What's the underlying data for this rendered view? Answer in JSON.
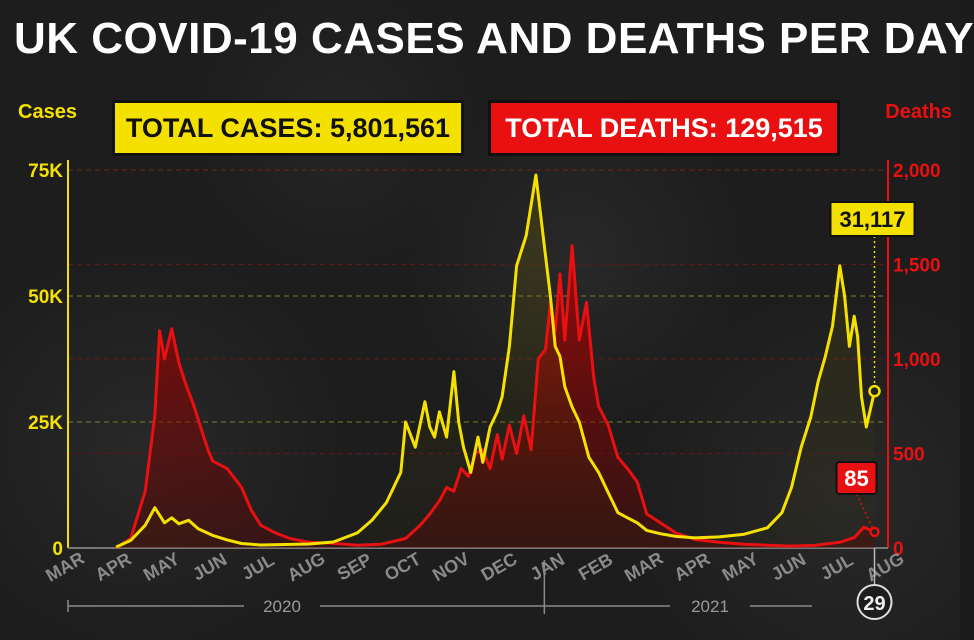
{
  "header": {
    "title": "UK COVID-19 CASES AND DEATHS PER DAY",
    "total_cases": "TOTAL CASES: 5,801,561",
    "total_deaths": "TOTAL DEATHS: 129,515"
  },
  "colors": {
    "cases": "#f5e100",
    "deaths": "#e81010",
    "grid": "#6e6a2a",
    "month_label": "#8a8a8a"
  },
  "chart_data": {
    "type": "line",
    "x_axis": {
      "months": [
        "MAR",
        "APR",
        "MAY",
        "JUN",
        "JUL",
        "AUG",
        "SEP",
        "OCT",
        "NOV",
        "DEC",
        "JAN",
        "FEB",
        "MAR",
        "APR",
        "MAY",
        "JUN",
        "JUL",
        "AUG"
      ],
      "years": [
        "2020",
        "2021"
      ],
      "end_day_label": "29"
    },
    "left_axis": {
      "label": "Cases",
      "ticks": [
        "0",
        "25K",
        "50K",
        "75K"
      ],
      "ylim": [
        0,
        75000
      ]
    },
    "right_axis": {
      "label": "Deaths",
      "ticks": [
        "0",
        "500",
        "1,000",
        "1,500",
        "2,000"
      ],
      "ylim": [
        0,
        2000
      ]
    },
    "grid": true,
    "series": [
      {
        "name": "Cases",
        "axis": "left",
        "x": [
          1.0,
          1.3,
          1.6,
          1.8,
          2.0,
          2.15,
          2.3,
          2.5,
          2.7,
          3.0,
          3.3,
          3.6,
          4.0,
          4.5,
          5.0,
          5.5,
          6.0,
          6.3,
          6.6,
          6.9,
          7.0,
          7.2,
          7.4,
          7.5,
          7.6,
          7.7,
          7.85,
          8.0,
          8.1,
          8.2,
          8.35,
          8.5,
          8.6,
          8.75,
          8.9,
          9.0,
          9.15,
          9.3,
          9.5,
          9.7,
          9.9,
          10.0,
          10.05,
          10.1,
          10.2,
          10.3,
          10.45,
          10.6,
          10.8,
          11.0,
          11.2,
          11.4,
          11.6,
          11.8,
          12.0,
          12.3,
          12.6,
          13.0,
          13.5,
          14.0,
          14.5,
          14.8,
          15.0,
          15.2,
          15.4,
          15.55,
          15.7,
          15.85,
          16.0,
          16.1,
          16.2,
          16.3,
          16.37,
          16.45,
          16.55,
          16.72
        ],
        "values": [
          200,
          1500,
          4500,
          8000,
          5000,
          6000,
          4800,
          5500,
          3800,
          2500,
          1600,
          900,
          600,
          700,
          800,
          1200,
          3000,
          5500,
          9000,
          15000,
          25000,
          20000,
          29000,
          24000,
          22000,
          27000,
          22000,
          35000,
          25000,
          20000,
          15000,
          22000,
          17000,
          24000,
          27000,
          30000,
          40000,
          56000,
          62000,
          74000,
          58000,
          50000,
          45000,
          40000,
          38000,
          32000,
          28000,
          25000,
          18000,
          15000,
          11000,
          7000,
          6000,
          5000,
          3500,
          2800,
          2300,
          2000,
          2200,
          2700,
          4000,
          7000,
          12000,
          20000,
          26000,
          33000,
          38000,
          44000,
          56000,
          50000,
          40000,
          46000,
          42000,
          30000,
          24000,
          31117
        ]
      },
      {
        "name": "Deaths",
        "axis": "right",
        "x": [
          1.0,
          1.3,
          1.6,
          1.8,
          1.9,
          2.0,
          2.15,
          2.3,
          2.45,
          2.6,
          2.75,
          2.9,
          3.0,
          3.3,
          3.6,
          3.8,
          4.0,
          4.3,
          4.6,
          5.0,
          5.5,
          6.0,
          6.5,
          7.0,
          7.3,
          7.5,
          7.7,
          7.85,
          8.0,
          8.15,
          8.3,
          8.45,
          8.6,
          8.75,
          8.9,
          9.0,
          9.15,
          9.3,
          9.45,
          9.6,
          9.75,
          9.9,
          10.0,
          10.1,
          10.2,
          10.3,
          10.45,
          10.6,
          10.75,
          10.9,
          11.0,
          11.2,
          11.4,
          11.6,
          11.8,
          12.0,
          12.3,
          12.6,
          13.0,
          13.5,
          14.0,
          14.5,
          15.0,
          15.5,
          16.0,
          16.3,
          16.5,
          16.72
        ],
        "values": [
          0,
          50,
          300,
          700,
          1150,
          1000,
          1160,
          980,
          860,
          760,
          640,
          520,
          460,
          420,
          320,
          200,
          120,
          80,
          50,
          30,
          25,
          15,
          20,
          50,
          120,
          180,
          250,
          320,
          300,
          420,
          380,
          500,
          520,
          420,
          600,
          470,
          650,
          500,
          700,
          520,
          1000,
          1050,
          1300,
          1150,
          1450,
          1100,
          1600,
          1100,
          1300,
          900,
          750,
          650,
          480,
          420,
          350,
          180,
          130,
          80,
          45,
          30,
          20,
          15,
          10,
          15,
          30,
          55,
          110,
          85
        ]
      }
    ],
    "annotations": [
      {
        "label": "31,117",
        "series": "Cases",
        "x": 16.72,
        "y": 31117
      },
      {
        "label": "85",
        "series": "Deaths",
        "x": 16.72,
        "y": 85
      }
    ]
  }
}
